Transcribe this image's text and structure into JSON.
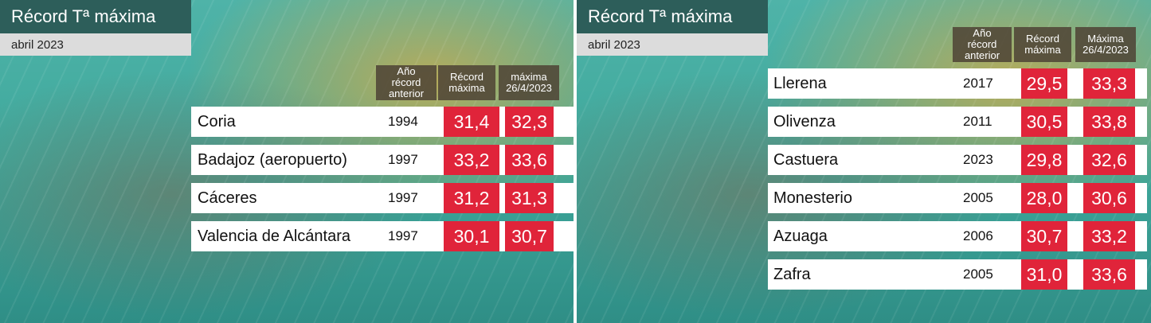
{
  "panels": [
    {
      "title": "Récord Tª máxima",
      "subtitle": "abril 2023",
      "headers": [
        [
          "Año",
          "récord",
          "anterior"
        ],
        [
          "Récord",
          "máxima"
        ],
        [
          "máxima",
          "26/4/2023"
        ]
      ],
      "rows": [
        [
          "Coria",
          "1994",
          "31,4",
          "32,3"
        ],
        [
          "Badajoz (aeropuerto)",
          "1997",
          "33,2",
          "33,6"
        ],
        [
          "Cáceres",
          "1997",
          "31,2",
          "31,3"
        ],
        [
          "Valencia de Alcántara",
          "1997",
          "30,1",
          "30,7"
        ]
      ]
    },
    {
      "title": "Récord Tª máxima",
      "subtitle": "abril 2023",
      "headers": [
        [
          "Año",
          "récord",
          "anterior"
        ],
        [
          "Récord",
          "máxima"
        ],
        [
          "Máxima",
          "26/4/2023"
        ]
      ],
      "rows": [
        [
          "Llerena",
          "2017",
          "29,5",
          "33,3"
        ],
        [
          "Olivenza",
          "2011",
          "30,5",
          "33,8"
        ],
        [
          "Castuera",
          "2023",
          "29,8",
          "32,6"
        ],
        [
          "Monesterio",
          "2005",
          "28,0",
          "30,6"
        ],
        [
          "Azuaga",
          "2006",
          "30,7",
          "33,2"
        ],
        [
          "Zafra",
          "2005",
          "31,0",
          "33,6"
        ]
      ]
    }
  ]
}
